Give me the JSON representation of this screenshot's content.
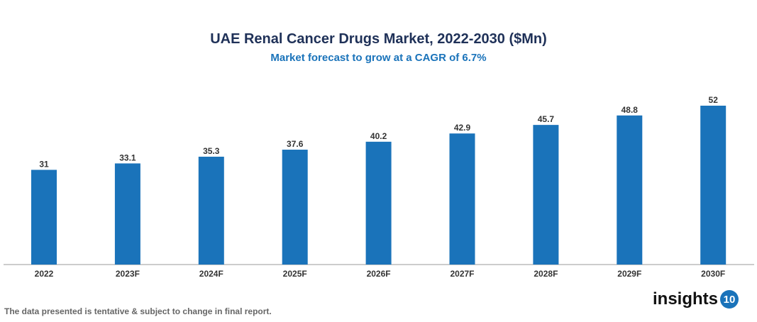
{
  "chart_data": {
    "type": "bar",
    "title": "UAE Renal Cancer Drugs Market, 2022-2030 ($Mn)",
    "subtitle": "Market forecast to grow at a CAGR of 6.7%",
    "categories": [
      "2022",
      "2023F",
      "2024F",
      "2025F",
      "2026F",
      "2027F",
      "2028F",
      "2029F",
      "2030F"
    ],
    "values": [
      31,
      33.1,
      35.3,
      37.6,
      40.2,
      42.9,
      45.7,
      48.8,
      52
    ],
    "value_labels": [
      "31",
      "33.1",
      "35.3",
      "37.6",
      "40.2",
      "42.9",
      "45.7",
      "48.8",
      "52"
    ],
    "xlabel": "",
    "ylabel": "",
    "ylim": [
      0,
      52
    ],
    "grid": false,
    "bar_color": "#1a73ba"
  },
  "footer": {
    "note": "The data presented is tentative & subject to change in final report.",
    "logo_text": "insights",
    "logo_number": "10"
  }
}
